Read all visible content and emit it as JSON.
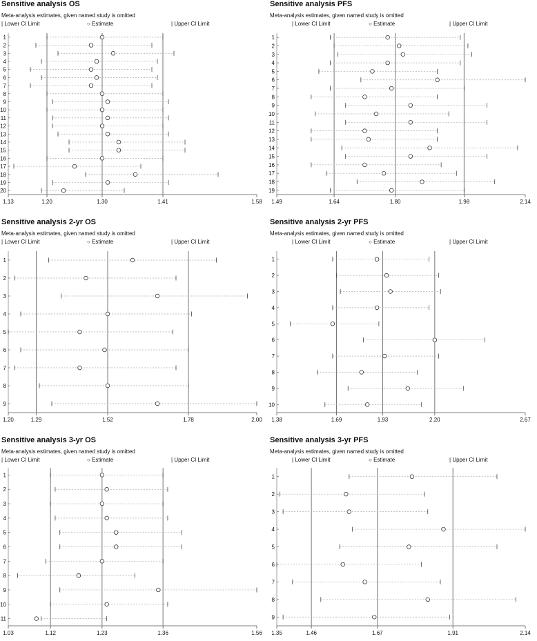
{
  "panels": [
    {
      "title": "Sensitive analysis OS",
      "subtitle": "Meta-analysis estimates, given named study is omitted",
      "legend": {
        "lower": "Lower CI Limit",
        "estimate": "Estimate",
        "upper": "Upper CI Limit"
      }
    },
    {
      "title": "Sensitive analysis PFS",
      "subtitle": "Meta-analysis estimates, given named study is omitted",
      "legend": {
        "lower": "Lower CI Limit",
        "estimate": "Estimate",
        "upper": "Upper CI Limit"
      }
    },
    {
      "title": "Sensitive analysis 2-yr OS",
      "subtitle": "Meta-analysis estimates, given named study is omitted",
      "legend": {
        "lower": "Lower CI Limit",
        "estimate": "Estimate",
        "upper": "Upper CI Limit"
      }
    },
    {
      "title": "Sensitive analysis 2-yr PFS",
      "subtitle": "Meta-analysis estimates, given named study is omitted",
      "legend": {
        "lower": "Lower CI Limit",
        "estimate": "Estimate",
        "upper": "Upper CI Limit"
      }
    },
    {
      "title": "Sensitive analysis 3-yr OS",
      "subtitle": "Meta-analysis estimates, given named study is omitted",
      "legend": {
        "lower": "Lower CI Limit",
        "estimate": "Estimate",
        "upper": "Upper CI Limit"
      }
    },
    {
      "title": "Sensitive analysis 3-yr PFS",
      "subtitle": "Meta-analysis estimates, given named study is omitted",
      "legend": {
        "lower": "Lower CI Limit",
        "estimate": "Estimate",
        "upper": "Upper CI Limit"
      }
    }
  ],
  "chart_data": [
    {
      "type": "scatter",
      "title": "Sensitive analysis OS",
      "xlim": [
        1.13,
        1.58
      ],
      "xticks": [
        "1.13",
        "1.20",
        "1.30",
        "1.41",
        "1.58"
      ],
      "reference_lines": [
        1.2,
        1.3,
        1.41
      ],
      "studies": [
        "1",
        "2",
        "3",
        "4",
        "5",
        "6",
        "7",
        "8",
        "9",
        "10",
        "11",
        "12",
        "13",
        "14",
        "15",
        "16",
        "17",
        "18",
        "19",
        "20"
      ],
      "lower": [
        1.2,
        1.18,
        1.22,
        1.19,
        1.17,
        1.19,
        1.17,
        1.2,
        1.21,
        1.2,
        1.21,
        1.21,
        1.22,
        1.24,
        1.24,
        1.2,
        1.14,
        1.27,
        1.21,
        1.19
      ],
      "estimate": [
        1.3,
        1.28,
        1.32,
        1.29,
        1.28,
        1.29,
        1.28,
        1.3,
        1.31,
        1.3,
        1.31,
        1.3,
        1.31,
        1.33,
        1.33,
        1.3,
        1.25,
        1.36,
        1.31,
        1.23
      ],
      "upper": [
        1.41,
        1.39,
        1.43,
        1.4,
        1.39,
        1.4,
        1.39,
        1.41,
        1.42,
        1.41,
        1.42,
        1.41,
        1.42,
        1.45,
        1.45,
        1.41,
        1.37,
        1.51,
        1.42,
        1.34
      ]
    },
    {
      "type": "scatter",
      "title": "Sensitive analysis PFS",
      "xlim": [
        1.49,
        2.14
      ],
      "xticks": [
        "1.49",
        "1.64",
        "1.80",
        "1.98",
        "2.14"
      ],
      "reference_lines": [
        1.64,
        1.8,
        1.98
      ],
      "studies": [
        "1",
        "2",
        "3",
        "4",
        "5",
        "6",
        "7",
        "8",
        "9",
        "10",
        "11",
        "12",
        "13",
        "14",
        "15",
        "16",
        "17",
        "18",
        "19"
      ],
      "lower": [
        1.63,
        1.64,
        1.65,
        1.63,
        1.6,
        1.71,
        1.63,
        1.58,
        1.67,
        1.59,
        1.67,
        1.58,
        1.58,
        1.66,
        1.67,
        1.58,
        1.62,
        1.7,
        1.63
      ],
      "estimate": [
        1.78,
        1.81,
        1.82,
        1.78,
        1.74,
        1.91,
        1.79,
        1.72,
        1.84,
        1.75,
        1.84,
        1.72,
        1.73,
        1.89,
        1.84,
        1.72,
        1.77,
        1.87,
        1.79
      ],
      "upper": [
        1.97,
        1.99,
        2.0,
        1.97,
        1.91,
        2.14,
        1.98,
        1.91,
        2.04,
        1.94,
        2.04,
        1.91,
        1.91,
        2.12,
        2.04,
        1.92,
        1.96,
        2.06,
        1.98
      ]
    },
    {
      "type": "scatter",
      "title": "Sensitive analysis 2-yr OS",
      "xlim": [
        1.2,
        2.0
      ],
      "xticks": [
        "1.20",
        "1.29",
        "1.52",
        "1.78",
        "2.00"
      ],
      "reference_lines": [
        1.29,
        1.52,
        1.78
      ],
      "studies": [
        "1",
        "2",
        "3",
        "4",
        "5",
        "6",
        "7",
        "8",
        "9"
      ],
      "lower": [
        1.33,
        1.22,
        1.37,
        1.24,
        1.2,
        1.24,
        1.22,
        1.3,
        1.34
      ],
      "estimate": [
        1.6,
        1.45,
        1.68,
        1.52,
        1.43,
        1.51,
        1.43,
        1.52,
        1.68
      ],
      "upper": [
        1.87,
        1.74,
        1.97,
        1.79,
        1.73,
        1.78,
        1.74,
        1.78,
        2.0
      ]
    },
    {
      "type": "scatter",
      "title": "Sensitive analysis 2-yr PFS",
      "xlim": [
        1.38,
        2.67
      ],
      "xticks": [
        "1.38",
        "1.69",
        "1.93",
        "2.20",
        "2.67"
      ],
      "reference_lines": [
        1.69,
        1.93,
        2.2
      ],
      "studies": [
        "1",
        "2",
        "3",
        "4",
        "5",
        "6",
        "7",
        "8",
        "9",
        "10"
      ],
      "lower": [
        1.67,
        1.69,
        1.71,
        1.67,
        1.45,
        1.83,
        1.67,
        1.59,
        1.75,
        1.63
      ],
      "estimate": [
        1.9,
        1.95,
        1.97,
        1.9,
        1.67,
        2.2,
        1.94,
        1.82,
        2.06,
        1.85
      ],
      "upper": [
        2.17,
        2.22,
        2.23,
        2.17,
        1.91,
        2.46,
        2.22,
        2.11,
        2.35,
        2.13
      ]
    },
    {
      "type": "scatter",
      "title": "Sensitive analysis 3-yr OS",
      "xlim": [
        1.03,
        1.56
      ],
      "xticks": [
        "1.03",
        "1.12",
        "1.23",
        "1.36",
        "1.56"
      ],
      "reference_lines": [
        1.12,
        1.23,
        1.36
      ],
      "studies": [
        "1",
        "2",
        "3",
        "4",
        "5",
        "6",
        "7",
        "8",
        "9",
        "10",
        "11"
      ],
      "lower": [
        1.12,
        1.13,
        1.12,
        1.13,
        1.14,
        1.14,
        1.11,
        1.05,
        1.14,
        1.12,
        1.1
      ],
      "estimate": [
        1.23,
        1.24,
        1.23,
        1.24,
        1.26,
        1.26,
        1.23,
        1.18,
        1.35,
        1.24,
        1.09
      ],
      "upper": [
        1.36,
        1.37,
        1.36,
        1.37,
        1.4,
        1.4,
        1.36,
        1.3,
        1.56,
        1.37,
        1.24
      ]
    },
    {
      "type": "scatter",
      "title": "Sensitive analysis 3-yr PFS",
      "xlim": [
        1.35,
        2.14
      ],
      "xticks": [
        "1.35",
        "1.46",
        "1.67",
        "1.91",
        "2.14"
      ],
      "reference_lines": [
        1.46,
        1.67,
        1.91
      ],
      "studies": [
        "1",
        "2",
        "3",
        "4",
        "5",
        "6",
        "7",
        "8",
        "9"
      ],
      "lower": [
        1.58,
        1.36,
        1.37,
        1.59,
        1.55,
        1.35,
        1.4,
        1.49,
        1.37
      ],
      "estimate": [
        1.78,
        1.57,
        1.58,
        1.88,
        1.77,
        1.56,
        1.63,
        1.83,
        1.66
      ],
      "upper": [
        2.05,
        1.82,
        1.83,
        2.14,
        2.05,
        1.81,
        1.87,
        2.11,
        1.9
      ]
    }
  ]
}
